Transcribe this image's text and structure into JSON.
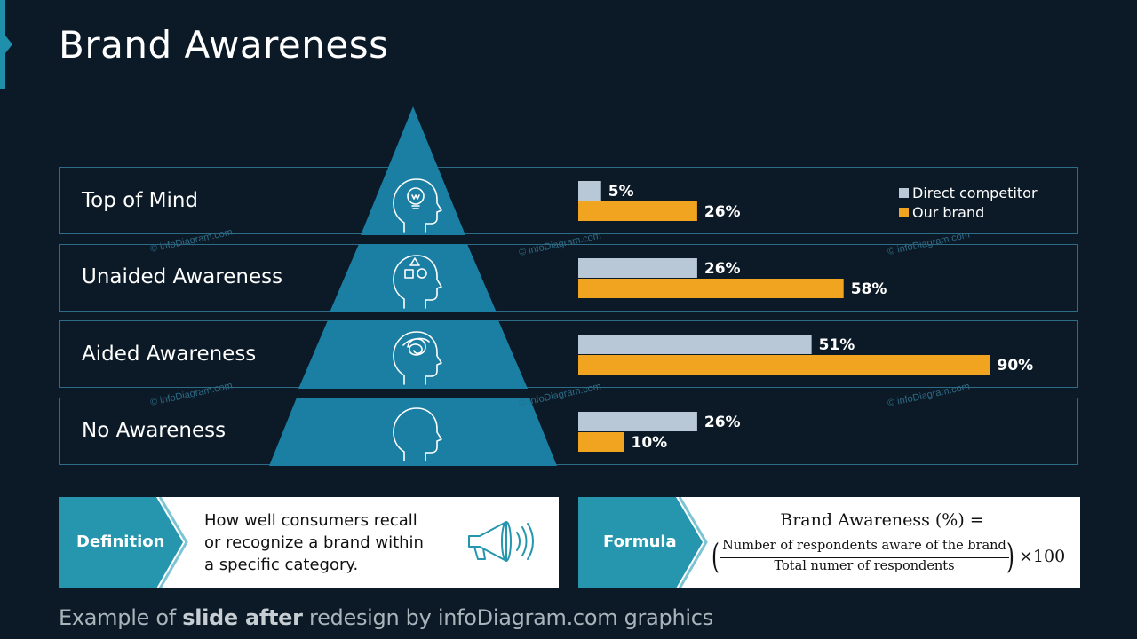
{
  "title": "Brand Awareness",
  "watermark": "© infoDiagram.com",
  "levels": [
    "Top of Mind",
    "Unaided Awareness",
    "Aided Awareness",
    "No Awareness"
  ],
  "icons": [
    "head-lightbulb-icon",
    "head-shapes-icon",
    "head-scribble-icon",
    "head-empty-icon"
  ],
  "colors": {
    "background": "#0b1a26",
    "pyramid": "#1a7fa3",
    "competitor": "#b8c8d6",
    "our_brand": "#f0a41f",
    "tab": "#2596ad"
  },
  "chart_data": {
    "type": "bar",
    "orientation": "horizontal",
    "categories": [
      "Top of Mind",
      "Unaided Awareness",
      "Aided Awareness",
      "No Awareness"
    ],
    "series": [
      {
        "name": "Direct competitor",
        "values": [
          5,
          26,
          51,
          26
        ],
        "labels": [
          "5%",
          "26%",
          "51%",
          "26%"
        ]
      },
      {
        "name": "Our brand",
        "values": [
          26,
          58,
          90,
          10
        ],
        "labels": [
          "26%",
          "58%",
          "90%",
          "10%"
        ]
      }
    ],
    "xlim": [
      0,
      100
    ],
    "legend": "top-right"
  },
  "definition": {
    "tab_label": "Definition",
    "lines": [
      "How well consumers recall",
      "or recognize a brand within",
      "a specific category."
    ],
    "icon": "megaphone-icon"
  },
  "formula": {
    "tab_label": "Formula",
    "title": "Brand Awareness (%) =",
    "numerator": "Number of respondents aware of the brand",
    "denominator": "Total numer of respondents",
    "open_paren": "(",
    "close_paren": ")",
    "multiplier": "×100"
  },
  "footer": {
    "prefix": "Example of ",
    "bold": "slide after",
    "suffix": " redesign by infoDiagram.com graphics"
  }
}
